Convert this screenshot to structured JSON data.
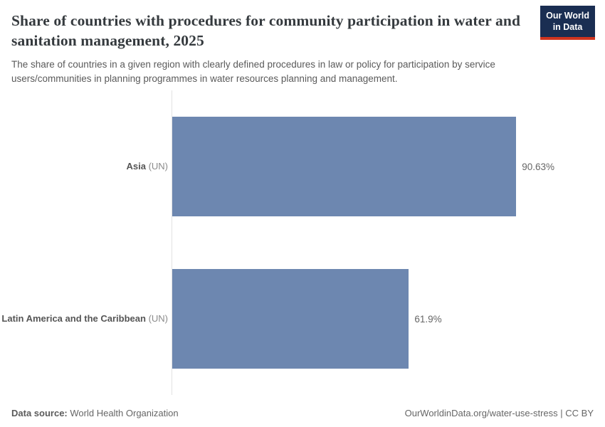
{
  "colors": {
    "bar": "#6d87b0",
    "axis": "#e2e2e2",
    "title_text": "#353a3e",
    "subtitle_text": "#5a5a5a",
    "label_bold": "#555555",
    "label_light": "#8a8a8a",
    "value_text": "#666666",
    "footer_text": "#666666",
    "logo_bg": "#1a2e52",
    "logo_stripe": "#d0341f"
  },
  "header": {
    "title": "Share of countries with procedures for community participation in water and sanitation management, 2025",
    "subtitle": "The share of countries in a given region with clearly defined procedures in law or policy for participation by service users/communities in planning programmes in water resources planning and management.",
    "logo": {
      "line1": "Our World",
      "line2": "in Data"
    }
  },
  "chart_data": {
    "type": "bar",
    "orientation": "horizontal",
    "title": "Share of countries with procedures for community participation in water and sanitation management, 2025",
    "unit": "%",
    "xlim": [
      0,
      100
    ],
    "grid": false,
    "legend": "none",
    "categories": [
      "Asia (UN)",
      "Latin America and the Caribbean (UN)"
    ],
    "values": [
      90.63,
      61.9
    ],
    "rows": [
      {
        "label": "Asia",
        "label_suffix": "(UN)",
        "value": 90.63,
        "value_label": "90.63%"
      },
      {
        "label": "Latin America and the Caribbean",
        "label_suffix": "(UN)",
        "value": 61.9,
        "value_label": "61.9%"
      }
    ]
  },
  "footer": {
    "source_label": "Data source:",
    "source_value": "World Health Organization",
    "credit": "OurWorldinData.org/water-use-stress | CC BY"
  }
}
